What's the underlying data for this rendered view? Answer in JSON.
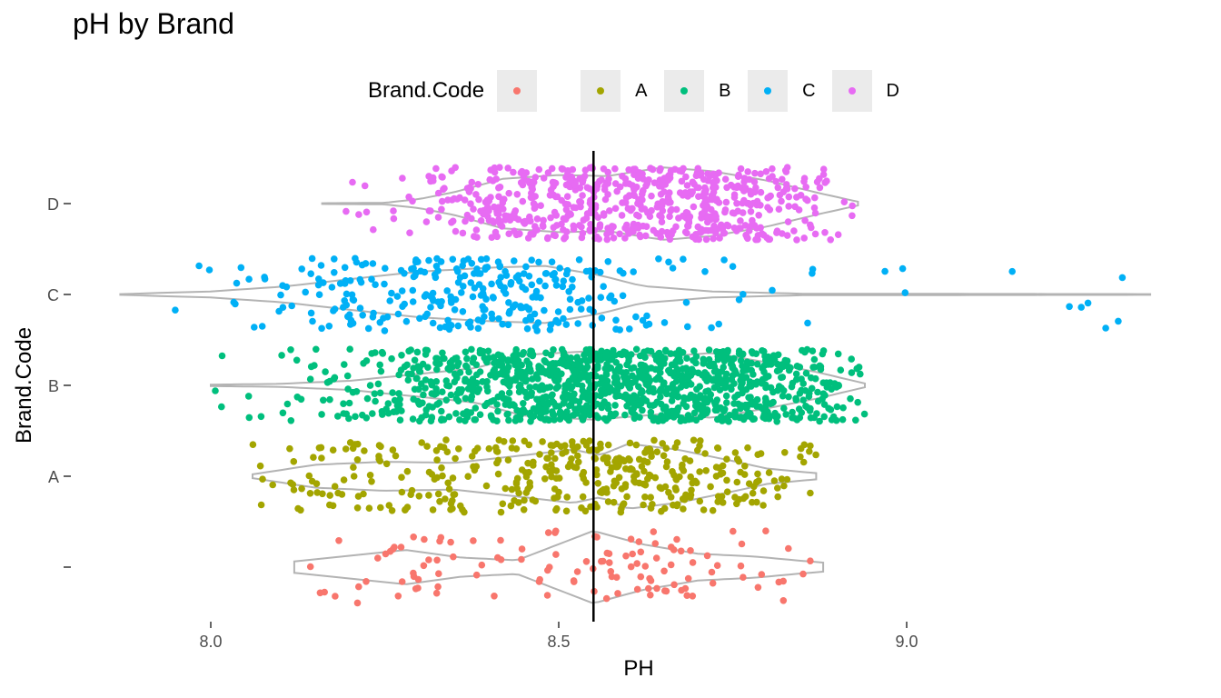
{
  "chart_data": {
    "type": "scatter",
    "title": "pH by Brand",
    "xlabel": "PH",
    "ylabel": "Brand.Code",
    "xlim": [
      7.85,
      9.4
    ],
    "x_ticks": [
      "8.0",
      "8.5",
      "9.0"
    ],
    "x_tick_values": [
      8.0,
      8.5,
      9.0
    ],
    "categories": [
      "",
      "A",
      "B",
      "C",
      "D"
    ],
    "reference_line": 8.55,
    "legend": {
      "title": "Brand.Code",
      "position": "top",
      "entries": [
        {
          "label": "",
          "color": "#F8766D"
        },
        {
          "label": "A",
          "color": "#A3A500"
        },
        {
          "label": "B",
          "color": "#00BF7D"
        },
        {
          "label": "C",
          "color": "#00B0F6"
        },
        {
          "label": "D",
          "color": "#E76BF3"
        }
      ]
    },
    "violin_color": "#b3b3b3",
    "series": [
      {
        "name": "",
        "color": "#F8766D",
        "count": 120,
        "range": [
          8.12,
          8.88
        ],
        "density": [
          [
            8.12,
            0.15
          ],
          [
            8.2,
            0.3
          ],
          [
            8.28,
            0.45
          ],
          [
            8.36,
            0.25
          ],
          [
            8.44,
            0.18
          ],
          [
            8.5,
            0.6
          ],
          [
            8.55,
            0.95
          ],
          [
            8.62,
            0.6
          ],
          [
            8.7,
            0.35
          ],
          [
            8.78,
            0.28
          ],
          [
            8.84,
            0.18
          ],
          [
            8.88,
            0.12
          ]
        ]
      },
      {
        "name": "A",
        "color": "#A3A500",
        "count": 400,
        "range": [
          8.06,
          8.87
        ],
        "density": [
          [
            8.06,
            0.05
          ],
          [
            8.15,
            0.3
          ],
          [
            8.25,
            0.38
          ],
          [
            8.35,
            0.35
          ],
          [
            8.45,
            0.55
          ],
          [
            8.52,
            0.7
          ],
          [
            8.56,
            0.55
          ],
          [
            8.6,
            0.85
          ],
          [
            8.67,
            0.7
          ],
          [
            8.75,
            0.4
          ],
          [
            8.8,
            0.2
          ],
          [
            8.87,
            0.08
          ]
        ]
      },
      {
        "name": "B",
        "color": "#00BF7D",
        "count": 1200,
        "range": [
          8.0,
          8.94
        ],
        "density": [
          [
            8.0,
            0.02
          ],
          [
            8.1,
            0.04
          ],
          [
            8.2,
            0.12
          ],
          [
            8.3,
            0.3
          ],
          [
            8.38,
            0.45
          ],
          [
            8.45,
            0.8
          ],
          [
            8.55,
            0.9
          ],
          [
            8.65,
            0.75
          ],
          [
            8.72,
            0.85
          ],
          [
            8.8,
            0.6
          ],
          [
            8.87,
            0.35
          ],
          [
            8.94,
            0.05
          ]
        ]
      },
      {
        "name": "C",
        "color": "#00B0F6",
        "count": 320,
        "range": [
          7.87,
          9.35
        ],
        "density": [
          [
            7.87,
            0.01
          ],
          [
            8.0,
            0.08
          ],
          [
            8.1,
            0.2
          ],
          [
            8.2,
            0.4
          ],
          [
            8.3,
            0.6
          ],
          [
            8.4,
            0.7
          ],
          [
            8.48,
            0.75
          ],
          [
            8.56,
            0.5
          ],
          [
            8.62,
            0.22
          ],
          [
            8.72,
            0.08
          ],
          [
            8.85,
            0.02
          ],
          [
            9.35,
            0.01
          ]
        ]
      },
      {
        "name": "D",
        "color": "#E76BF3",
        "count": 650,
        "range": [
          8.16,
          8.93
        ],
        "density": [
          [
            8.16,
            0.01
          ],
          [
            8.25,
            0.02
          ],
          [
            8.3,
            0.12
          ],
          [
            8.35,
            0.3
          ],
          [
            8.42,
            0.65
          ],
          [
            8.5,
            0.75
          ],
          [
            8.57,
            0.72
          ],
          [
            8.65,
            0.95
          ],
          [
            8.72,
            0.85
          ],
          [
            8.8,
            0.6
          ],
          [
            8.88,
            0.25
          ],
          [
            8.93,
            0.05
          ]
        ]
      }
    ]
  }
}
